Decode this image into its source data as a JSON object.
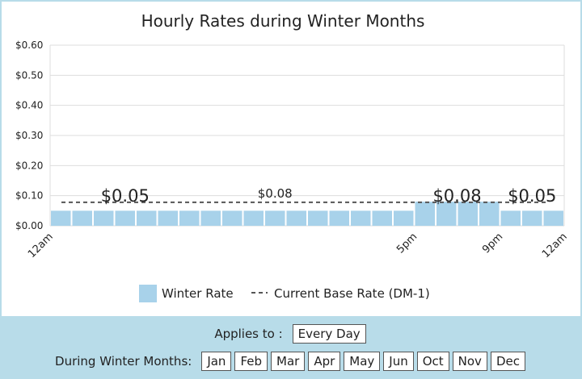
{
  "chart_data": {
    "type": "bar",
    "title": "Hourly Rates during Winter Months",
    "y_ticks": [
      "$0.60",
      "$0.50",
      "$0.40",
      "$0.30",
      "$0.20",
      "$0.10",
      "$0.00"
    ],
    "ylim": [
      0,
      0.6
    ],
    "grid": true,
    "hours": 24,
    "x_ticks": [
      {
        "hour": 0,
        "label": "12am"
      },
      {
        "hour": 17,
        "label": "5pm"
      },
      {
        "hour": 21,
        "label": "9pm"
      },
      {
        "hour": 24,
        "label": "12am"
      }
    ],
    "series": [
      {
        "name": "Winter Rate",
        "type": "bar",
        "color": "#a8d2ea",
        "values": [
          0.05,
          0.05,
          0.05,
          0.05,
          0.05,
          0.05,
          0.05,
          0.05,
          0.05,
          0.05,
          0.05,
          0.05,
          0.05,
          0.05,
          0.05,
          0.05,
          0.05,
          0.08,
          0.08,
          0.08,
          0.08,
          0.05,
          0.05,
          0.05
        ]
      },
      {
        "name": "Current Base Rate (DM-1)",
        "type": "dashed-line",
        "color": "#555555",
        "value": 0.078
      }
    ],
    "annotations": [
      {
        "text": "$0.05",
        "hour": 3.5,
        "style": "big"
      },
      {
        "text": "$0.08",
        "hour": 10.5,
        "style": "small"
      },
      {
        "text": "$0.08",
        "hour": 19,
        "style": "big"
      },
      {
        "text": "$0.05",
        "hour": 22.5,
        "style": "big"
      }
    ],
    "legend_position": "bottom"
  },
  "controls": {
    "applies_label": "Applies to :",
    "applies_value": "Every Day",
    "months_label": "During Winter Months:",
    "months": [
      "Jan",
      "Feb",
      "Mar",
      "Apr",
      "May",
      "Jun",
      "Oct",
      "Nov",
      "Dec"
    ]
  }
}
